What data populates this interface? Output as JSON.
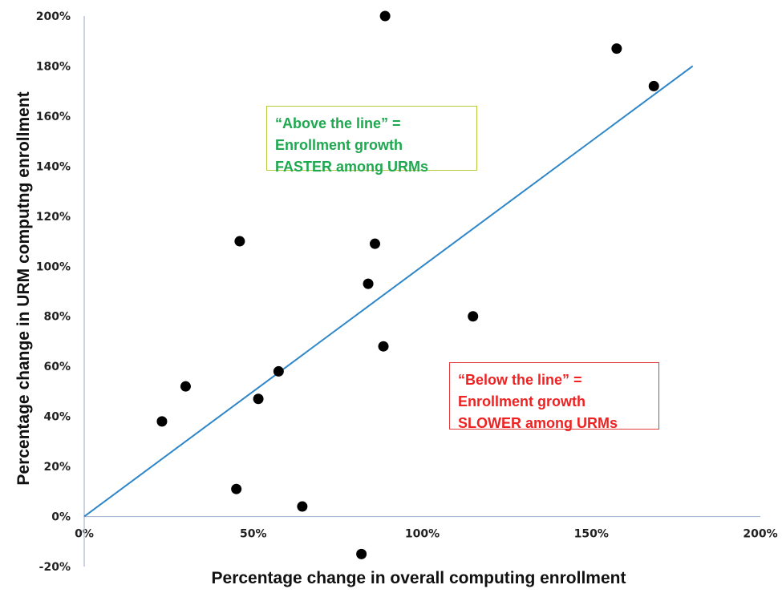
{
  "chart_data": {
    "type": "scatter",
    "xlabel": "Percentage change in overall computing enrollment",
    "ylabel": "Percentage change in URM computng enrollment",
    "xlim": [
      0,
      200
    ],
    "ylim": [
      -20,
      200
    ],
    "x_ticks": [
      "0%",
      "50%",
      "100%",
      "150%",
      "200%"
    ],
    "y_ticks": [
      "-20%",
      "0%",
      "20%",
      "40%",
      "60%",
      "80%",
      "100%",
      "120%",
      "140%",
      "160%",
      "180%",
      "200%"
    ],
    "points": [
      {
        "x": 23,
        "y": 38
      },
      {
        "x": 30,
        "y": 52
      },
      {
        "x": 45,
        "y": 11
      },
      {
        "x": 46,
        "y": 110
      },
      {
        "x": 51.5,
        "y": 47
      },
      {
        "x": 57.5,
        "y": 58
      },
      {
        "x": 64.5,
        "y": 4
      },
      {
        "x": 82,
        "y": -15
      },
      {
        "x": 84,
        "y": 93
      },
      {
        "x": 86,
        "y": 109
      },
      {
        "x": 88.5,
        "y": 68
      },
      {
        "x": 89,
        "y": 200
      },
      {
        "x": 115,
        "y": 80
      },
      {
        "x": 157.5,
        "y": 187
      },
      {
        "x": 168.5,
        "y": 172
      }
    ],
    "reference_line": {
      "x": [
        0,
        180
      ],
      "y": [
        0,
        180
      ],
      "color": "#2e86c8"
    },
    "point_color": "#000000",
    "axis_color": "#a6b8d4",
    "grid": false,
    "legend": false
  },
  "annotations": {
    "above": {
      "lines": [
        "“Above the line” =",
        "Enrollment growth",
        "FASTER among URMs"
      ],
      "text_color": "#1ea84f",
      "border_color": "#b5c93c"
    },
    "below": {
      "lines": [
        "“Below the line” =",
        "Enrollment growth",
        "SLOWER among URMs"
      ],
      "text_color": "#ee2222",
      "border_color": "#e03a3a"
    }
  }
}
